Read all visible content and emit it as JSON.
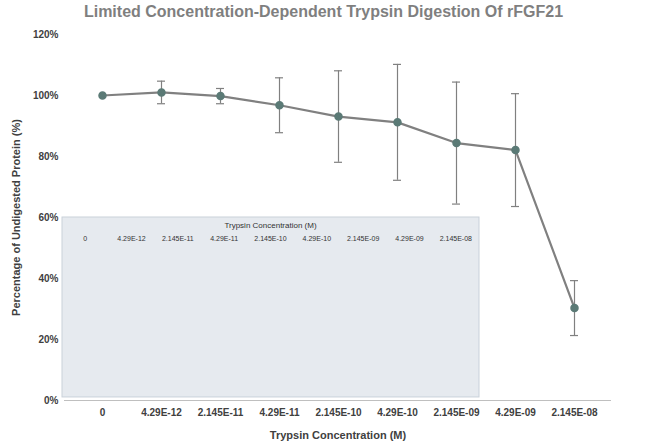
{
  "chart_data": {
    "type": "line",
    "title": "Limited Concentration-Dependent Trypsin Digestion Of rFGF21",
    "x_label": "Trypsin Concentration (M)",
    "y_label": "Percentage of Undigested Protein (%)",
    "categories": [
      "0",
      "4.29E-12",
      "2.145E-11",
      "4.29E-11",
      "2.145E-10",
      "4.29E-10",
      "2.145E-09",
      "4.29E-09",
      "2.145E-08"
    ],
    "values": [
      100,
      101,
      99.8,
      96.8,
      93.1,
      91.2,
      84.4,
      82.1,
      30.3
    ],
    "errors": [
      0,
      3.7,
      2.5,
      9,
      15,
      19,
      20,
      18.5,
      9
    ],
    "color": "#808080",
    "marker": "circle",
    "ylim": [
      0,
      120
    ],
    "yticks": [
      {
        "value": 0,
        "label": "0%"
      },
      {
        "value": 20,
        "label": "20%"
      },
      {
        "value": 40,
        "label": "40%"
      },
      {
        "value": 60,
        "label": "60%"
      },
      {
        "value": 80,
        "label": "80%"
      },
      {
        "value": 100,
        "label": "100%"
      },
      {
        "value": 120,
        "label": "120%"
      }
    ],
    "grid": false,
    "inset_title": "Trypsin Concentration (M)",
    "inset_lane_labels": [
      "0",
      "4.29E-12",
      "2.145E-11",
      "4.29E-11",
      "2.145E-10",
      "4.29E-10",
      "2.145E-09",
      "4.29E-09",
      "2.145E-08"
    ]
  }
}
